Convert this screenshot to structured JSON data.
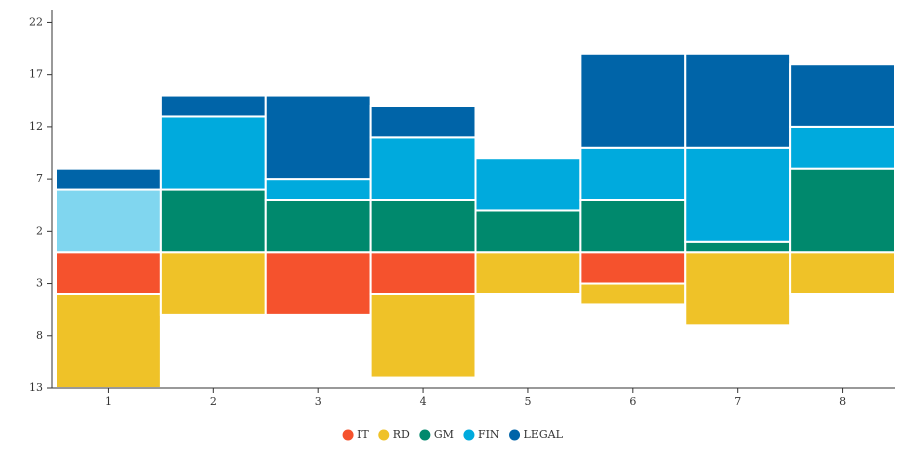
{
  "chart_data": {
    "type": "stacked_bar",
    "categories": [
      "1",
      "2",
      "3",
      "4",
      "5",
      "6",
      "7",
      "8"
    ],
    "series": [
      {
        "name": "IT",
        "color": "#f5522d",
        "values": [
          -4,
          0,
          -6,
          -4,
          0,
          -3,
          0,
          0
        ]
      },
      {
        "name": "RD",
        "color": "#efc228",
        "values": [
          -9,
          -6,
          0,
          -8,
          -4,
          -2,
          -7,
          -4
        ]
      },
      {
        "name": "GM",
        "color": "#00896d",
        "values": [
          0,
          6,
          5,
          5,
          4,
          5,
          1,
          8
        ]
      },
      {
        "name": "FIN",
        "color": "#00aadd",
        "point_colors": [
          "#80d6ef",
          null,
          null,
          null,
          null,
          null,
          null,
          null
        ],
        "values": [
          6,
          7,
          2,
          6,
          5,
          5,
          9,
          4
        ]
      },
      {
        "name": "LEGAL",
        "color": "#0064a8",
        "values": [
          2,
          2,
          8,
          3,
          0,
          9,
          9,
          6
        ]
      }
    ],
    "ylim": [
      -13,
      23
    ],
    "yticks": [
      {
        "value": -13,
        "label": "13"
      },
      {
        "value": -8,
        "label": "8"
      },
      {
        "value": -3,
        "label": "3"
      },
      2,
      7,
      12,
      17,
      22
    ]
  }
}
